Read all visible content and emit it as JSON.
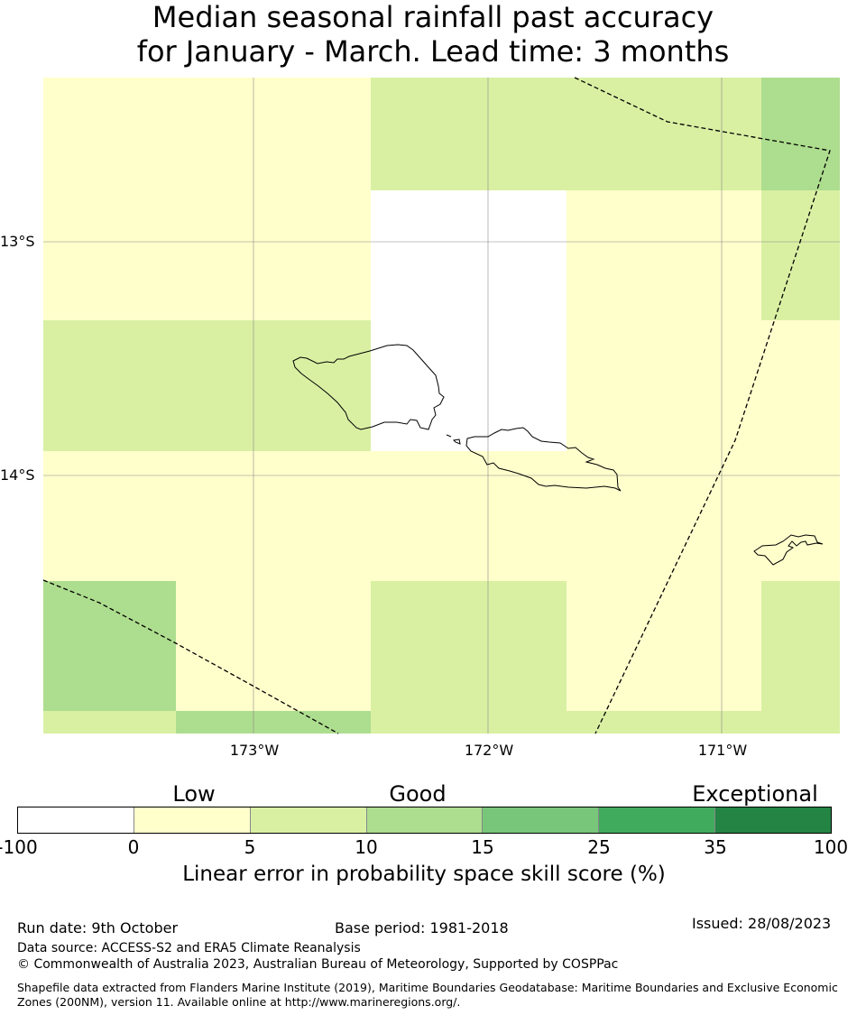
{
  "title": {
    "line1": "Median seasonal rainfall past accuracy",
    "line2": "for January - March. Lead time: 3 months"
  },
  "map": {
    "lat_labels": [
      "13°S",
      "14°S"
    ],
    "lon_labels": [
      "173°W",
      "172°W",
      "171°W"
    ],
    "grid_note": "skill score cells by category index",
    "colors": [
      "#ffffff",
      "#ffffcc",
      "#d9f0a3",
      "#addd8e",
      "#78c679",
      "#41ab5d",
      "#238443"
    ]
  },
  "colorbar": {
    "categories": [
      "Low",
      "Good",
      "Exceptional"
    ],
    "ticks": [
      "-100",
      "0",
      "5",
      "10",
      "15",
      "25",
      "35",
      "100"
    ],
    "label": "Linear error in probability space skill score (%)"
  },
  "footer": {
    "run_date": "Run date: 9th October",
    "base_period": "Base period: 1981-2018",
    "issued": "Issued: 28/08/2023",
    "data_source": "Data source: ACCESS-S2 and ERA5 Climate Reanalysis",
    "copyright": "© Commonwealth of Australia 2023, Australian Bureau of Meteorology, Supported by COSPPac",
    "shapefile": "Shapefile data extracted from Flanders Marine Institute (2019), Maritime Boundaries Geodatabase: Maritime Boundaries and Exclusive Economic Zones (200NM), version 11. Available online at http://www.marineregions.org/."
  }
}
